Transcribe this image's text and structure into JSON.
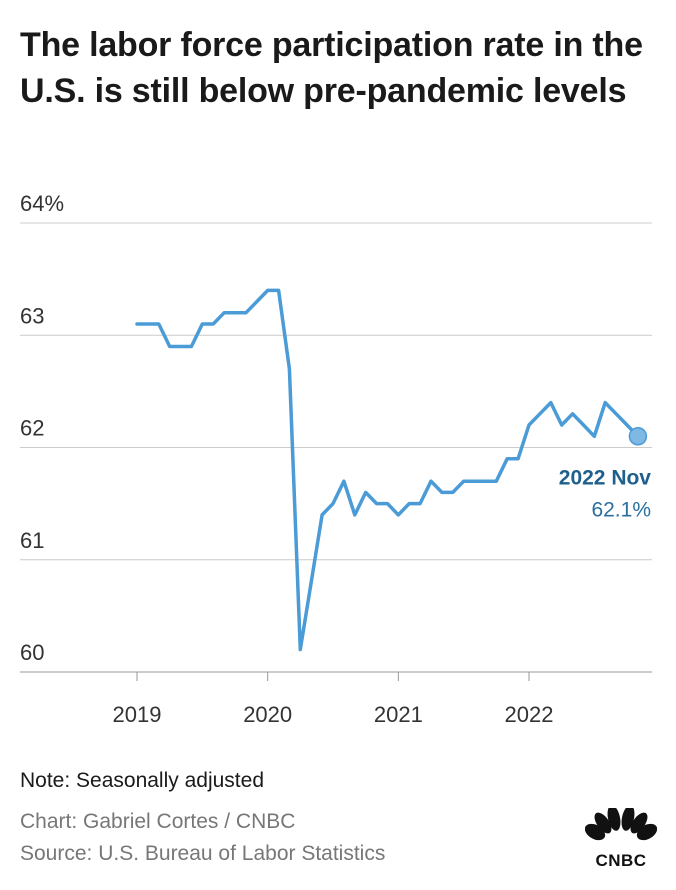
{
  "title": "The labor force participation rate in the U.S. is still below pre-pandemic levels",
  "note": "Note: Seasonally adjusted",
  "credit": "Chart: Gabriel Cortes / CNBC",
  "source": "Source: U.S. Bureau of Labor Statistics",
  "logo_text": "CNBC",
  "colors": {
    "line": "#4a9bd6",
    "annotation": "#1f5f8b",
    "grid": "#cccccc"
  },
  "chart_data": {
    "type": "line",
    "title": "The labor force participation rate in the U.S. is still below pre-pandemic levels",
    "xlabel": "",
    "ylabel": "",
    "ylim": [
      60,
      64
    ],
    "y_ticks": [
      {
        "value": 64,
        "label": "64%"
      },
      {
        "value": 63,
        "label": "63"
      },
      {
        "value": 62,
        "label": "62"
      },
      {
        "value": 61,
        "label": "61"
      },
      {
        "value": 60,
        "label": "60"
      }
    ],
    "x_ticks": [
      {
        "value": 2019,
        "label": "2019"
      },
      {
        "value": 2020,
        "label": "2020"
      },
      {
        "value": 2021,
        "label": "2021"
      },
      {
        "value": 2022,
        "label": "2022"
      }
    ],
    "x_start": 2019,
    "x_end": 2022.833,
    "series": [
      {
        "name": "Labor force participation rate",
        "start": "2019-01",
        "values": [
          63.1,
          63.1,
          63.1,
          62.9,
          62.9,
          62.9,
          63.1,
          63.1,
          63.2,
          63.2,
          63.2,
          63.3,
          63.4,
          63.4,
          62.7,
          60.2,
          60.8,
          61.4,
          61.5,
          61.7,
          61.4,
          61.6,
          61.5,
          61.5,
          61.4,
          61.5,
          61.5,
          61.7,
          61.6,
          61.6,
          61.7,
          61.7,
          61.7,
          61.7,
          61.9,
          61.9,
          62.2,
          62.3,
          62.4,
          62.2,
          62.3,
          62.2,
          62.1,
          62.4,
          62.3,
          62.2,
          62.1
        ]
      }
    ],
    "annotation": {
      "label": "2022 Nov",
      "value_label": "62.1%",
      "value": 62.1
    }
  }
}
